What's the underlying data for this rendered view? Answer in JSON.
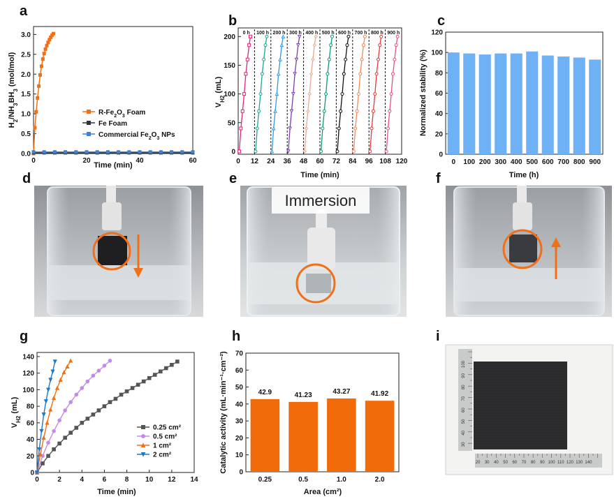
{
  "panels": {
    "a": "a",
    "b": "b",
    "c": "c",
    "d": "d",
    "e": "e",
    "f": "f",
    "g": "g",
    "h": "h",
    "i": "i"
  },
  "colors": {
    "orange": "#f07019",
    "black": "#333333",
    "blue": "#3f7fd8",
    "bar_blue": "#6fb1f5",
    "bar_orange": "#f26b0b"
  },
  "chart_data": [
    {
      "id": "a",
      "type": "line",
      "xlabel": "Time (min)",
      "ylabel": "H2/NH3BH3 (mol/mol)",
      "xlim": [
        0,
        60
      ],
      "ylim": [
        0,
        3.2
      ],
      "xticks": [
        0,
        20,
        40,
        60
      ],
      "yticks": [
        0.0,
        0.5,
        1.0,
        1.5,
        2.0,
        2.5,
        3.0
      ],
      "ytick_labels": [
        "0.0",
        "0.5",
        "1.0",
        "1.5",
        "2.0",
        "2.5",
        "3.0"
      ],
      "legend_position": "center-right",
      "series": [
        {
          "name": "R-Fe2O3 Foam",
          "color": "#f07019",
          "marker": "square",
          "x": [
            0,
            0.5,
            1,
            1.5,
            2,
            2.5,
            3,
            3.5,
            4,
            4.5,
            5,
            5.5,
            6,
            6.5,
            7,
            7.5
          ],
          "y": [
            0,
            0.65,
            1.05,
            1.4,
            1.7,
            1.98,
            2.2,
            2.38,
            2.52,
            2.63,
            2.72,
            2.8,
            2.87,
            2.93,
            2.98,
            3.02
          ]
        },
        {
          "name": "Fe Foam",
          "color": "#333333",
          "marker": "square",
          "x": [
            0,
            4,
            8,
            12,
            16,
            20,
            24,
            28,
            32,
            36,
            40,
            44,
            48,
            52,
            56,
            60
          ],
          "y": [
            0.02,
            0.02,
            0.02,
            0.02,
            0.02,
            0.02,
            0.02,
            0.02,
            0.02,
            0.02,
            0.02,
            0.02,
            0.02,
            0.02,
            0.02,
            0.02
          ]
        },
        {
          "name": "Commercial Fe2O3 NPs",
          "color": "#3f7fd8",
          "marker": "square",
          "x": [
            0,
            4,
            8,
            12,
            16,
            20,
            24,
            28,
            32,
            36,
            40,
            44,
            48,
            52,
            56,
            60
          ],
          "y": [
            0.04,
            0.04,
            0.04,
            0.04,
            0.04,
            0.04,
            0.04,
            0.04,
            0.04,
            0.04,
            0.04,
            0.04,
            0.04,
            0.04,
            0.04,
            0.04
          ]
        }
      ]
    },
    {
      "id": "b",
      "type": "line",
      "xlabel": "Time (min)",
      "ylabel": "VH2 (mL)",
      "xlim": [
        0,
        120
      ],
      "ylim": [
        -5,
        215
      ],
      "xticks": [
        0,
        12,
        24,
        36,
        48,
        60,
        72,
        84,
        96,
        108,
        120
      ],
      "yticks": [
        0,
        50,
        100,
        150,
        200
      ],
      "cycle_labels": [
        "0 h",
        "100 h",
        "200 h",
        "300 h",
        "400 h",
        "500 h",
        "600 h",
        "700 h",
        "800 h",
        "900 h"
      ],
      "dividers": [
        12,
        24,
        36,
        48,
        60,
        72,
        84,
        96,
        108
      ],
      "segment_y": [
        0,
        40,
        70,
        100,
        135,
        160,
        185,
        200
      ],
      "series": [
        {
          "name": "0 h",
          "color": "#e0267a",
          "marker": "square",
          "x": [
            0.8,
            2.0,
            3.2,
            4.4,
            5.6,
            6.8,
            8.0,
            9.0
          ]
        },
        {
          "name": "100 h",
          "color": "#1aa793",
          "marker": "circle",
          "x": [
            12.8,
            14.0,
            15.2,
            16.4,
            17.6,
            18.8,
            20.0,
            21.0
          ]
        },
        {
          "name": "200 h",
          "color": "#2f9be0",
          "marker": "triangle",
          "x": [
            24.8,
            26.0,
            27.2,
            28.4,
            29.6,
            30.8,
            32.0,
            33.0
          ]
        },
        {
          "name": "300 h",
          "color": "#7b3fb0",
          "marker": "triangle-down",
          "x": [
            36.8,
            38.0,
            39.2,
            40.4,
            41.6,
            42.8,
            44.0,
            45.0
          ]
        },
        {
          "name": "400 h",
          "color": "#e9a98f",
          "marker": "diamond",
          "x": [
            48.8,
            50.0,
            51.2,
            52.4,
            53.6,
            54.8,
            56.0,
            57.0
          ]
        },
        {
          "name": "500 h",
          "color": "#0d9a7a",
          "marker": "circle",
          "x": [
            60.8,
            62.0,
            63.2,
            64.4,
            65.6,
            66.8,
            68.0,
            69.0
          ]
        },
        {
          "name": "600 h",
          "color": "#111111",
          "marker": "circle",
          "x": [
            72.8,
            74.0,
            75.2,
            76.4,
            77.6,
            78.8,
            80.0,
            81.0
          ]
        },
        {
          "name": "700 h",
          "color": "#f08a5a",
          "marker": "circle",
          "x": [
            84.8,
            86.0,
            87.2,
            88.4,
            89.6,
            90.8,
            92.0,
            93.0
          ]
        },
        {
          "name": "800 h",
          "color": "#e23b3b",
          "marker": "circle",
          "x": [
            96.8,
            98.0,
            99.2,
            100.4,
            101.6,
            102.8,
            104.0,
            105.0
          ]
        },
        {
          "name": "900 h",
          "color": "#e2508a",
          "marker": "circle",
          "x": [
            108.8,
            110.0,
            111.2,
            112.4,
            113.6,
            114.8,
            116.0,
            117.0
          ]
        }
      ]
    },
    {
      "id": "c",
      "type": "bar",
      "xlabel": "Time (h)",
      "ylabel": "Normalized stability (%)",
      "ylim": [
        0,
        120
      ],
      "yticks": [
        0,
        20,
        40,
        60,
        80,
        100,
        120
      ],
      "categories": [
        "0",
        "100",
        "200",
        "300",
        "400",
        "500",
        "600",
        "700",
        "800",
        "900"
      ],
      "values": [
        100,
        99,
        98,
        99,
        99,
        101,
        97,
        96,
        95,
        93
      ]
    },
    {
      "id": "g",
      "type": "line",
      "xlabel": "Time (min)",
      "ylabel": "VH2 (mL)",
      "xlim": [
        0,
        14
      ],
      "ylim": [
        0,
        145
      ],
      "xticks": [
        0,
        2,
        4,
        6,
        8,
        10,
        12,
        14
      ],
      "yticks": [
        0,
        20,
        40,
        60,
        80,
        100,
        120,
        140
      ],
      "legend_position": "bottom-right",
      "series": [
        {
          "name": "0.25 cm²",
          "color": "#555555",
          "marker": "square",
          "x": [
            0,
            0.5,
            1,
            1.5,
            2,
            2.5,
            3,
            3.5,
            4,
            4.5,
            5,
            5.5,
            6,
            6.5,
            7,
            7.5,
            8,
            8.5,
            9,
            9.5,
            10,
            10.5,
            11,
            11.5,
            12,
            12.5
          ],
          "y": [
            0,
            11,
            20,
            28,
            35,
            42,
            48,
            54,
            60,
            65,
            70,
            75,
            80,
            85,
            89,
            94,
            98,
            102,
            106,
            110,
            114,
            118,
            122,
            126,
            130,
            134
          ]
        },
        {
          "name": "0.5 cm²",
          "color": "#c48ae8",
          "marker": "circle",
          "x": [
            0,
            0.5,
            1,
            1.5,
            2,
            2.5,
            3,
            3.5,
            4,
            4.5,
            5,
            5.5,
            6,
            6.5
          ],
          "y": [
            0,
            20,
            36,
            50,
            63,
            75,
            85,
            94,
            102,
            110,
            117,
            123,
            129,
            135
          ]
        },
        {
          "name": "1 cm²",
          "color": "#f07019",
          "marker": "triangle",
          "x": [
            0,
            0.3,
            0.6,
            0.9,
            1.2,
            1.5,
            1.8,
            2.1,
            2.4,
            2.7,
            3.0
          ],
          "y": [
            0,
            22,
            42,
            60,
            76,
            90,
            102,
            112,
            121,
            128,
            135
          ]
        },
        {
          "name": "2 cm²",
          "color": "#1f78c8",
          "marker": "triangle-down",
          "x": [
            0,
            0.2,
            0.4,
            0.6,
            0.8,
            1.0,
            1.2,
            1.4,
            1.6
          ],
          "y": [
            0,
            28,
            50,
            70,
            86,
            100,
            112,
            122,
            134
          ]
        }
      ]
    },
    {
      "id": "h",
      "type": "bar",
      "xlabel": "Area (cm²)",
      "ylabel": "Catalytic activity (mL·min⁻¹·cm⁻²)",
      "ylim": [
        0,
        70
      ],
      "yticks": [
        0,
        10,
        20,
        30,
        40,
        50,
        60,
        70
      ],
      "categories": [
        "0.25",
        "0.5",
        "1.0",
        "2.0"
      ],
      "values": [
        42.9,
        41.23,
        43.27,
        41.92
      ],
      "labels": [
        "42.9",
        "41.23",
        "43.27",
        "41.92"
      ]
    }
  ],
  "photos": {
    "e_text": "Immersion",
    "ruler_h_labels": [
      "20",
      "30",
      "40",
      "50",
      "60",
      "70",
      "80",
      "90",
      "100",
      "110",
      "120",
      "130",
      "140"
    ],
    "ruler_v_labels": [
      "100",
      "90",
      "80",
      "70",
      "60",
      "50",
      "40",
      "30"
    ]
  }
}
